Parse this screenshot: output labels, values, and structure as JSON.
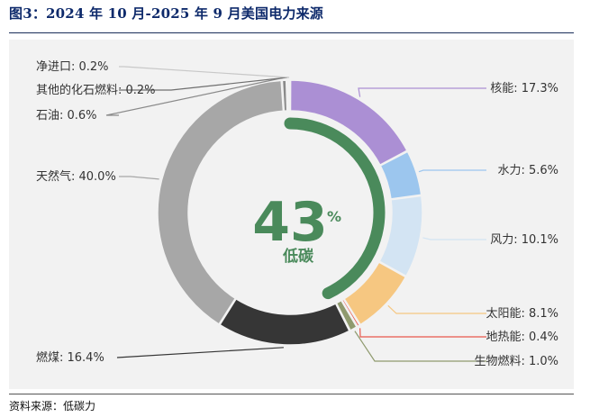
{
  "header": {
    "title": "图3：2024 年 10 月-2025 年 9 月美国电力来源"
  },
  "center": {
    "value": "43",
    "unit": "%",
    "label": "低碳",
    "fraction": 0.43,
    "color": "#4a8a5b"
  },
  "footer": {
    "source": "资料来源：低碳力"
  },
  "chart_data": {
    "type": "pie",
    "style": "donut",
    "unit": "%",
    "slices": [
      {
        "name": "核能",
        "value": 17.3,
        "label": "核能: 17.3%",
        "color": "#ab8fd4"
      },
      {
        "name": "水力",
        "value": 5.6,
        "label": "水力: 5.6%",
        "color": "#9cc6ee"
      },
      {
        "name": "风力",
        "value": 10.1,
        "label": "风力: 10.1%",
        "color": "#d3e4f3"
      },
      {
        "name": "太阳能",
        "value": 8.1,
        "label": "太阳能: 8.1%",
        "color": "#f6c781"
      },
      {
        "name": "地热能",
        "value": 0.4,
        "label": "地热能: 0.4%",
        "color": "#e8574b"
      },
      {
        "name": "生物燃料",
        "value": 1.0,
        "label": "生物燃料: 1.0%",
        "color": "#8f9a6e"
      },
      {
        "name": "燃煤",
        "value": 16.4,
        "label": "燃煤: 16.4%",
        "color": "#363636"
      },
      {
        "name": "天然气",
        "value": 40.0,
        "label": "天然气: 40.0%",
        "color": "#a7a7a7"
      },
      {
        "name": "石油",
        "value": 0.6,
        "label": "石油: 0.6%",
        "color": "#8a8a8a"
      },
      {
        "name": "其他的化石燃料",
        "value": 0.2,
        "label": "其他的化石燃料: 0.2%",
        "color": "#6f6f6f"
      },
      {
        "name": "净进口",
        "value": 0.2,
        "label": "净进口: 0.2%",
        "color": "#c8c8c8"
      }
    ]
  }
}
